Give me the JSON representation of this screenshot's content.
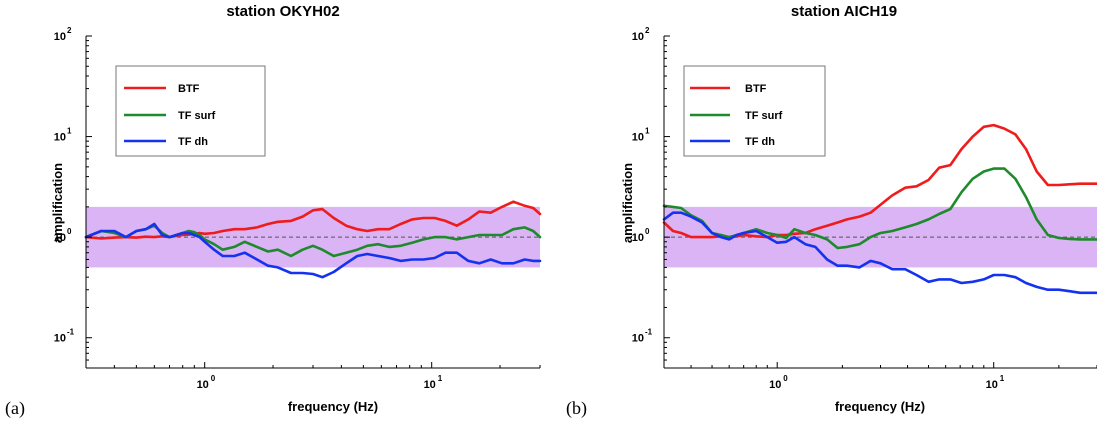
{
  "colors": {
    "band": "#dab4f4",
    "btf": "#ee1c1c",
    "tf_surf": "#1f8a2c",
    "tf_dh": "#1432f0",
    "ref": "#555555"
  },
  "chart_data": [
    {
      "type": "line",
      "panel_label": "(a)",
      "title": "station OKYH02",
      "xlabel": "frequency (Hz)",
      "ylabel": "amplification",
      "x_scale": "log",
      "y_scale": "log",
      "xlim": [
        0.3,
        30
      ],
      "ylim": [
        0.05,
        100
      ],
      "x_ticks": [
        {
          "base": "10",
          "exp": "0",
          "value": 1
        },
        {
          "base": "10",
          "exp": "1",
          "value": 10
        }
      ],
      "y_ticks": [
        {
          "base": "10",
          "exp": "-1",
          "value": 0.1
        },
        {
          "base": "10",
          "exp": "0",
          "value": 1
        },
        {
          "base": "10",
          "exp": "1",
          "value": 10
        },
        {
          "base": "10",
          "exp": "2",
          "value": 100
        }
      ],
      "band": [
        0.5,
        2.0
      ],
      "reference_line": 1.0,
      "legend_position": "top-left",
      "x": [
        0.3,
        0.35,
        0.4,
        0.45,
        0.5,
        0.55,
        0.6,
        0.65,
        0.7,
        0.75,
        0.8,
        0.85,
        0.9,
        0.95,
        1.0,
        1.1,
        1.2,
        1.35,
        1.5,
        1.7,
        1.9,
        2.1,
        2.4,
        2.7,
        3.0,
        3.3,
        3.7,
        4.2,
        4.7,
        5.2,
        5.8,
        6.5,
        7.3,
        8.2,
        9.2,
        10.3,
        11.5,
        12.9,
        14.5,
        16.2,
        18.2,
        20.4,
        22.9,
        25.7,
        28.0,
        30.0
      ],
      "series": [
        {
          "name": "BTF",
          "key": "btf",
          "values": [
            1.0,
            0.97,
            0.99,
            1.0,
            0.99,
            1.01,
            1.0,
            1.02,
            1.0,
            1.03,
            1.05,
            1.06,
            1.08,
            1.1,
            1.08,
            1.1,
            1.15,
            1.2,
            1.2,
            1.25,
            1.35,
            1.42,
            1.45,
            1.6,
            1.85,
            1.9,
            1.55,
            1.3,
            1.2,
            1.15,
            1.2,
            1.2,
            1.35,
            1.5,
            1.55,
            1.55,
            1.45,
            1.3,
            1.5,
            1.8,
            1.75,
            2.0,
            2.25,
            2.05,
            1.95,
            1.7
          ]
        },
        {
          "name": "TF surf",
          "key": "tf_surf",
          "values": [
            1.0,
            1.15,
            1.1,
            1.0,
            1.15,
            1.2,
            1.3,
            1.1,
            1.0,
            1.05,
            1.1,
            1.15,
            1.12,
            1.05,
            0.95,
            0.85,
            0.75,
            0.8,
            0.9,
            0.8,
            0.72,
            0.75,
            0.65,
            0.75,
            0.82,
            0.75,
            0.65,
            0.7,
            0.75,
            0.82,
            0.85,
            0.8,
            0.82,
            0.88,
            0.95,
            1.0,
            1.0,
            0.95,
            1.0,
            1.05,
            1.05,
            1.05,
            1.2,
            1.25,
            1.15,
            1.0
          ]
        },
        {
          "name": "TF dh",
          "key": "tf_dh",
          "values": [
            1.0,
            1.15,
            1.15,
            1.0,
            1.15,
            1.2,
            1.35,
            1.05,
            1.0,
            1.05,
            1.1,
            1.1,
            1.05,
            1.0,
            0.9,
            0.75,
            0.65,
            0.65,
            0.7,
            0.6,
            0.52,
            0.5,
            0.44,
            0.44,
            0.43,
            0.4,
            0.45,
            0.55,
            0.65,
            0.68,
            0.65,
            0.62,
            0.58,
            0.6,
            0.6,
            0.62,
            0.7,
            0.7,
            0.58,
            0.55,
            0.6,
            0.55,
            0.55,
            0.6,
            0.58,
            0.58
          ]
        }
      ]
    },
    {
      "type": "line",
      "panel_label": "(b)",
      "title": "station AICH19",
      "xlabel": "frequency (Hz)",
      "ylabel": "amplification",
      "x_scale": "log",
      "y_scale": "log",
      "xlim": [
        0.3,
        30
      ],
      "ylim": [
        0.05,
        100
      ],
      "x_ticks": [
        {
          "base": "10",
          "exp": "0",
          "value": 1
        },
        {
          "base": "10",
          "exp": "1",
          "value": 10
        }
      ],
      "y_ticks": [
        {
          "base": "10",
          "exp": "-1",
          "value": 0.1
        },
        {
          "base": "10",
          "exp": "0",
          "value": 1
        },
        {
          "base": "10",
          "exp": "1",
          "value": 10
        },
        {
          "base": "10",
          "exp": "2",
          "value": 100
        }
      ],
      "band": [
        0.5,
        2.0
      ],
      "reference_line": 1.0,
      "legend_position": "top-left",
      "x": [
        0.3,
        0.33,
        0.36,
        0.4,
        0.45,
        0.5,
        0.55,
        0.6,
        0.65,
        0.7,
        0.8,
        0.9,
        1.0,
        1.1,
        1.2,
        1.35,
        1.5,
        1.7,
        1.9,
        2.1,
        2.4,
        2.7,
        3.0,
        3.4,
        3.9,
        4.4,
        5.0,
        5.6,
        6.3,
        7.1,
        8.0,
        9.0,
        10.0,
        11.2,
        12.6,
        14.1,
        15.8,
        17.8,
        20.0,
        22.4,
        25.1,
        28.0,
        30.0
      ],
      "series": [
        {
          "name": "BTF",
          "key": "btf",
          "values": [
            1.4,
            1.15,
            1.1,
            1.0,
            1.0,
            1.0,
            1.02,
            1.0,
            1.02,
            1.05,
            1.02,
            1.0,
            1.05,
            1.05,
            1.08,
            1.1,
            1.2,
            1.3,
            1.4,
            1.5,
            1.6,
            1.75,
            2.1,
            2.6,
            3.1,
            3.2,
            3.7,
            4.9,
            5.2,
            7.5,
            10.0,
            12.5,
            13.0,
            12.0,
            10.5,
            7.5,
            4.5,
            3.3,
            3.3,
            3.35,
            3.4,
            3.4,
            3.4
          ]
        },
        {
          "name": "TF surf",
          "key": "tf_surf",
          "values": [
            2.05,
            2.0,
            1.95,
            1.65,
            1.45,
            1.1,
            1.05,
            1.0,
            1.05,
            1.1,
            1.2,
            1.1,
            1.05,
            0.98,
            1.2,
            1.1,
            1.05,
            0.95,
            0.78,
            0.8,
            0.85,
            1.0,
            1.1,
            1.15,
            1.25,
            1.35,
            1.5,
            1.7,
            1.9,
            2.8,
            3.8,
            4.5,
            4.8,
            4.8,
            3.8,
            2.5,
            1.5,
            1.05,
            0.98,
            0.96,
            0.95,
            0.95,
            0.95
          ]
        },
        {
          "name": "TF dh",
          "key": "tf_dh",
          "values": [
            1.5,
            1.75,
            1.75,
            1.6,
            1.4,
            1.1,
            1.0,
            0.95,
            1.05,
            1.1,
            1.15,
            1.0,
            0.88,
            0.9,
            1.0,
            0.85,
            0.8,
            0.6,
            0.52,
            0.52,
            0.5,
            0.58,
            0.55,
            0.48,
            0.48,
            0.42,
            0.36,
            0.38,
            0.38,
            0.35,
            0.36,
            0.38,
            0.42,
            0.42,
            0.4,
            0.35,
            0.32,
            0.3,
            0.3,
            0.29,
            0.28,
            0.28,
            0.28
          ]
        }
      ]
    }
  ],
  "legend_items": [
    {
      "key": "btf",
      "label": "BTF"
    },
    {
      "key": "tf_surf",
      "label": "TF surf"
    },
    {
      "key": "tf_dh",
      "label": "TF dh"
    }
  ]
}
